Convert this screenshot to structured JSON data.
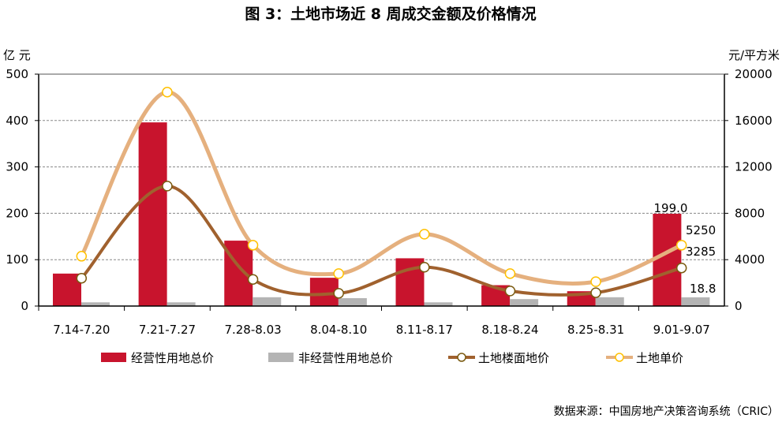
{
  "chart_data": {
    "type": "bar",
    "title": "图 3：土地市场近 8 周成交金额及价格情况",
    "ylabel_left": "亿 元",
    "ylabel_right": "元/平方米",
    "ylim_left": [
      0,
      500
    ],
    "ylim_right": [
      0,
      20000
    ],
    "yticks_left": [
      "0",
      "100",
      "200",
      "300",
      "400",
      "500"
    ],
    "yticks_right": [
      "0",
      "4000",
      "8000",
      "12000",
      "16000",
      "20000"
    ],
    "categories": [
      "7.14-7.20",
      "7.21-7.27",
      "7.28-8.03",
      "8.04-8.10",
      "8.11-8.17",
      "8.18-8.24",
      "8.25-8.31",
      "9.01-9.07"
    ],
    "series": [
      {
        "name": "经营性用地总价",
        "type": "bar",
        "axis": "left",
        "color": "#c8142d",
        "values": [
          70,
          396,
          141,
          61,
          103,
          45,
          32,
          199.0
        ]
      },
      {
        "name": "非经营性用地总价",
        "type": "bar",
        "axis": "left",
        "color": "#b4b4b4",
        "values": [
          8,
          8,
          19,
          17,
          8,
          15,
          19,
          18.8
        ]
      },
      {
        "name": "土地楼面地价",
        "type": "line",
        "axis": "right",
        "color": "#a0612e",
        "values": [
          2400,
          10350,
          2300,
          1100,
          3350,
          1300,
          1150,
          3285
        ]
      },
      {
        "name": "土地单价",
        "type": "line",
        "axis": "right",
        "color": "#e5b07e",
        "values": [
          4300,
          18450,
          5250,
          2800,
          6200,
          2800,
          2100,
          5250
        ]
      }
    ],
    "data_labels": [
      "199.0",
      "5250",
      "3285",
      "18.8"
    ],
    "grid": true,
    "legend": "bottom",
    "source": "数据来源：中国房地产决策咨询系统（CRIC）"
  }
}
